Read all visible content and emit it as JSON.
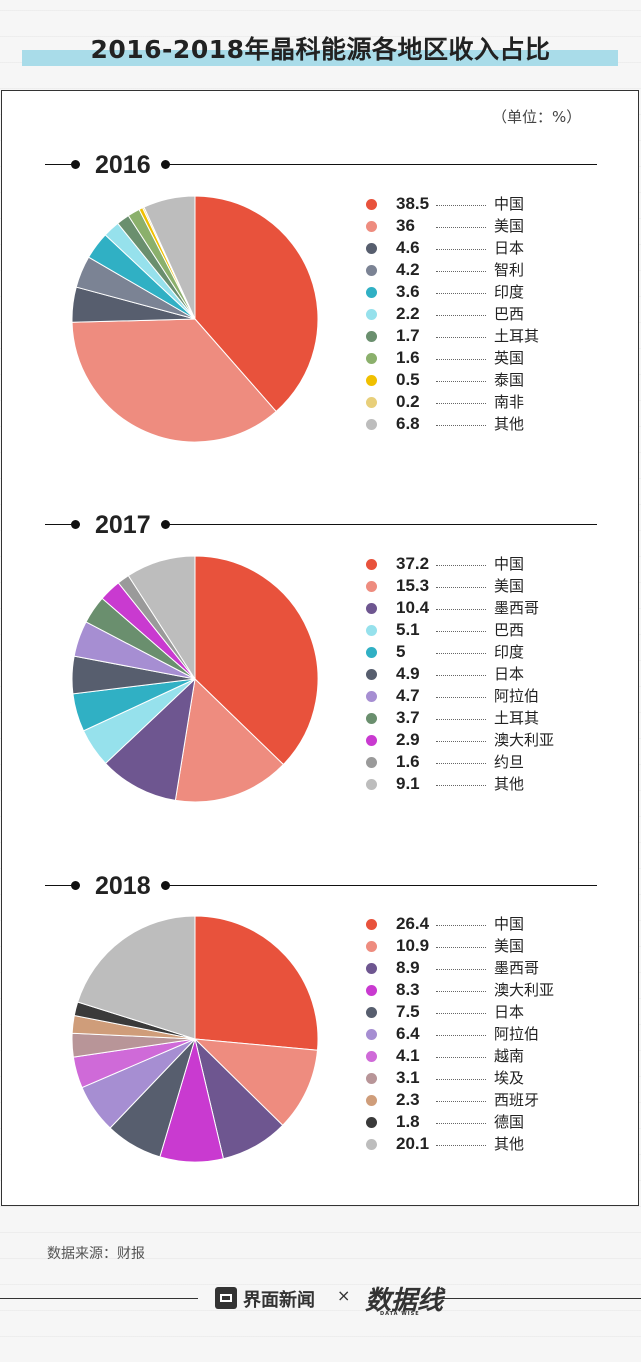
{
  "title": "2016-2018年晶科能源各地区收入占比",
  "unit": "（单位：%）",
  "source": "数据来源：财报",
  "footer": {
    "brand1": "界面新闻",
    "times": "×",
    "brand2": "数据线",
    "brand2_sub": "DATA WISE"
  },
  "chart_data": [
    {
      "type": "pie",
      "title": "2016",
      "slices": [
        {
          "label": "中国",
          "value": 38.5,
          "color": "#e8523c"
        },
        {
          "label": "美国",
          "value": 36,
          "color": "#ee8c7f"
        },
        {
          "label": "日本",
          "value": 4.6,
          "color": "#575e6e"
        },
        {
          "label": "智利",
          "value": 4.2,
          "color": "#7b8394"
        },
        {
          "label": "印度",
          "value": 3.6,
          "color": "#30b0c4"
        },
        {
          "label": "巴西",
          "value": 2.2,
          "color": "#96e1ec"
        },
        {
          "label": "土耳其",
          "value": 1.7,
          "color": "#6a8f6e"
        },
        {
          "label": "英国",
          "value": 1.6,
          "color": "#8bb06c"
        },
        {
          "label": "泰国",
          "value": 0.5,
          "color": "#f0c000"
        },
        {
          "label": "南非",
          "value": 0.2,
          "color": "#e8cf7a"
        },
        {
          "label": "其他",
          "value": 6.8,
          "color": "#bdbdbd"
        }
      ]
    },
    {
      "type": "pie",
      "title": "2017",
      "slices": [
        {
          "label": "中国",
          "value": 37.2,
          "color": "#e8523c"
        },
        {
          "label": "美国",
          "value": 15.3,
          "color": "#ee8c7f"
        },
        {
          "label": "墨西哥",
          "value": 10.4,
          "color": "#6e5690"
        },
        {
          "label": "巴西",
          "value": 5.1,
          "color": "#96e1ec"
        },
        {
          "label": "印度",
          "value": 5,
          "color": "#30b0c4"
        },
        {
          "label": "日本",
          "value": 4.9,
          "color": "#575e6e"
        },
        {
          "label": "阿拉伯",
          "value": 4.7,
          "color": "#a68ed2"
        },
        {
          "label": "土耳其",
          "value": 3.7,
          "color": "#6a8f6e"
        },
        {
          "label": "澳大利亚",
          "value": 2.9,
          "color": "#c93ad0"
        },
        {
          "label": "约旦",
          "value": 1.6,
          "color": "#9a9a9a"
        },
        {
          "label": "其他",
          "value": 9.1,
          "color": "#bdbdbd"
        }
      ]
    },
    {
      "type": "pie",
      "title": "2018",
      "slices": [
        {
          "label": "中国",
          "value": 26.4,
          "color": "#e8523c"
        },
        {
          "label": "美国",
          "value": 10.9,
          "color": "#ee8c7f"
        },
        {
          "label": "墨西哥",
          "value": 8.9,
          "color": "#6e5690"
        },
        {
          "label": "澳大利亚",
          "value": 8.3,
          "color": "#c93ad0"
        },
        {
          "label": "日本",
          "value": 7.5,
          "color": "#575e6e"
        },
        {
          "label": "阿拉伯",
          "value": 6.4,
          "color": "#a68ed2"
        },
        {
          "label": "越南",
          "value": 4.1,
          "color": "#cf6ad8"
        },
        {
          "label": "埃及",
          "value": 3.1,
          "color": "#b89598"
        },
        {
          "label": "西班牙",
          "value": 2.3,
          "color": "#cf9d7a"
        },
        {
          "label": "德国",
          "value": 1.8,
          "color": "#3a3a3a"
        },
        {
          "label": "其他",
          "value": 20.1,
          "color": "#bdbdbd"
        }
      ]
    }
  ]
}
